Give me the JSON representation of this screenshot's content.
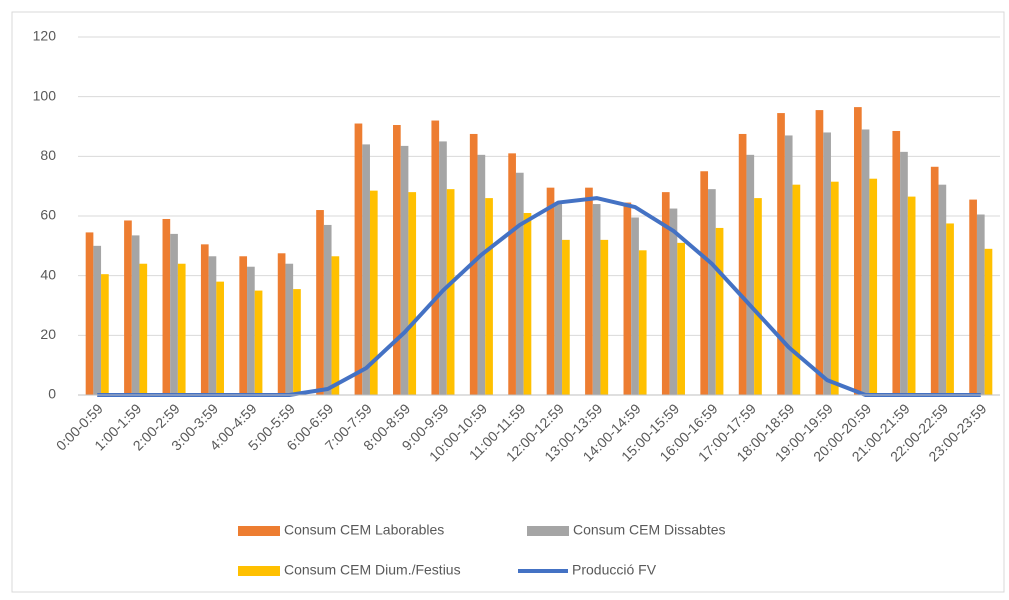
{
  "chart_data": {
    "type": "bar",
    "categories": [
      "0:00-0:59",
      "1:00-1:59",
      "2:00-2:59",
      "3:00-3:59",
      "4:00-4:59",
      "5:00-5:59",
      "6:00-6:59",
      "7:00-7:59",
      "8:00-8:59",
      "9:00-9:59",
      "10:00-10:59",
      "11:00-11:59",
      "12:00-12:59",
      "13:00-13:59",
      "14:00-14:59",
      "15:00-15:59",
      "16:00-16:59",
      "17:00-17:59",
      "18:00-18:59",
      "19:00-19:59",
      "20:00-20:59",
      "21:00-21:59",
      "22:00-22:59",
      "23:00-23:59"
    ],
    "series": [
      {
        "name": "Consum CEM Laborables",
        "type": "bar",
        "color": "#ed7d31",
        "values": [
          54.5,
          58.5,
          59,
          50.5,
          46.5,
          47.5,
          62,
          91,
          90.5,
          92,
          87.5,
          81,
          69.5,
          69.5,
          64.5,
          68,
          75,
          87.5,
          94.5,
          95.5,
          96.5,
          88.5,
          76.5,
          65.5
        ]
      },
      {
        "name": "Consum CEM Dissabtes",
        "type": "bar",
        "color": "#a5a5a5",
        "values": [
          50,
          53.5,
          54,
          46.5,
          43,
          44,
          57,
          84,
          83.5,
          85,
          80.5,
          74.5,
          64,
          64,
          59.5,
          62.5,
          69,
          80.5,
          87,
          88,
          89,
          81.5,
          70.5,
          60.5
        ]
      },
      {
        "name": "Consum CEM Dium./Festius",
        "type": "bar",
        "color": "#ffc000",
        "values": [
          40.5,
          44,
          44,
          38,
          35,
          35.5,
          46.5,
          68.5,
          68,
          69,
          66,
          61,
          52,
          52,
          48.5,
          51,
          56,
          66,
          70.5,
          71.5,
          72.5,
          66.5,
          57.5,
          49
        ]
      },
      {
        "name": "Producció FV",
        "type": "line",
        "color": "#4472c4",
        "values": [
          0,
          0,
          0,
          0,
          0,
          0,
          2,
          9,
          21,
          35,
          47,
          57,
          64.5,
          66,
          63,
          55,
          44,
          30,
          16,
          5,
          0,
          0,
          0,
          0
        ]
      }
    ],
    "ylim": [
      0,
      120
    ],
    "yticks": [
      0,
      20,
      40,
      60,
      80,
      100,
      120
    ],
    "grid": true,
    "legend": "bottom"
  }
}
